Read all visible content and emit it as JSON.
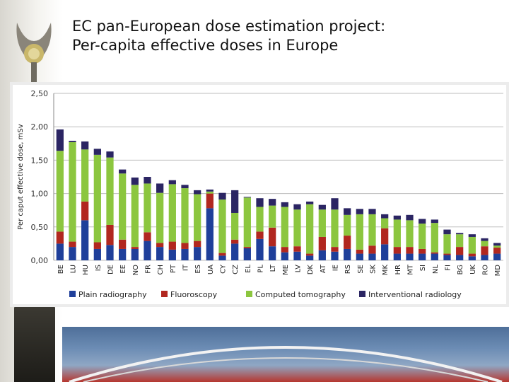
{
  "slide": {
    "title_line1": "EC pan-European dose estimation project:",
    "title_line2": "Per-capita effective doses in Europe"
  },
  "colors": {
    "plain": "#1f3f9a",
    "fluoro": "#b1271f",
    "ct": "#8cc63f",
    "interventional": "#2b2563"
  },
  "chart_data": {
    "type": "bar",
    "stacked": true,
    "title": "",
    "xlabel": "",
    "ylabel": "Per caput effective dose, mSv",
    "ylim": [
      0,
      2.5
    ],
    "yticks": [
      "0,00",
      "0,50",
      "1,00",
      "1,50",
      "2,00",
      "2,50"
    ],
    "categories": [
      "BE",
      "LU",
      "HU",
      "IS",
      "DE",
      "EE",
      "NO",
      "FR",
      "CH",
      "PT",
      "IT",
      "ES",
      "UA",
      "CY",
      "CZ",
      "EL",
      "PL",
      "LT",
      "ME",
      "LV",
      "DK",
      "AT",
      "IE",
      "RS",
      "SE",
      "SK",
      "MK",
      "HR",
      "MT",
      "SI",
      "NL",
      "FI",
      "BG",
      "UK",
      "RO",
      "MD"
    ],
    "series": [
      {
        "name": "Plain radiography",
        "key": "plain",
        "values": [
          0.25,
          0.2,
          0.6,
          0.17,
          0.23,
          0.17,
          0.17,
          0.29,
          0.2,
          0.16,
          0.17,
          0.2,
          0.78,
          0.07,
          0.25,
          0.18,
          0.32,
          0.21,
          0.12,
          0.13,
          0.07,
          0.15,
          0.13,
          0.17,
          0.1,
          0.1,
          0.24,
          0.1,
          0.1,
          0.1,
          0.1,
          0.08,
          0.08,
          0.06,
          0.08,
          0.1
        ]
      },
      {
        "name": "Fluoroscopy",
        "key": "fluoro",
        "values": [
          0.18,
          0.08,
          0.28,
          0.1,
          0.3,
          0.14,
          0.03,
          0.13,
          0.06,
          0.12,
          0.09,
          0.09,
          0.22,
          0.04,
          0.06,
          0.02,
          0.11,
          0.28,
          0.08,
          0.08,
          0.03,
          0.2,
          0.07,
          0.2,
          0.06,
          0.12,
          0.24,
          0.1,
          0.1,
          0.07,
          0.02,
          0.02,
          0.12,
          0.04,
          0.13,
          0.09
        ]
      },
      {
        "name": "Computed tomography",
        "key": "ct",
        "values": [
          1.21,
          1.49,
          0.78,
          1.31,
          1.01,
          0.99,
          0.93,
          0.73,
          0.75,
          0.86,
          0.82,
          0.7,
          0.03,
          0.8,
          0.4,
          0.74,
          0.37,
          0.33,
          0.6,
          0.55,
          0.74,
          0.41,
          0.56,
          0.31,
          0.53,
          0.47,
          0.15,
          0.41,
          0.4,
          0.38,
          0.44,
          0.29,
          0.19,
          0.25,
          0.08,
          0.03
        ]
      },
      {
        "name": "Interventional radiology",
        "key": "interventional",
        "values": [
          0.32,
          0.02,
          0.12,
          0.09,
          0.09,
          0.06,
          0.11,
          0.1,
          0.14,
          0.06,
          0.05,
          0.06,
          0.03,
          0.1,
          0.34,
          0.01,
          0.13,
          0.1,
          0.07,
          0.08,
          0.04,
          0.07,
          0.17,
          0.1,
          0.08,
          0.08,
          0.06,
          0.06,
          0.08,
          0.07,
          0.05,
          0.07,
          0.02,
          0.04,
          0.04,
          0.04
        ]
      }
    ],
    "legend_position": "bottom"
  }
}
